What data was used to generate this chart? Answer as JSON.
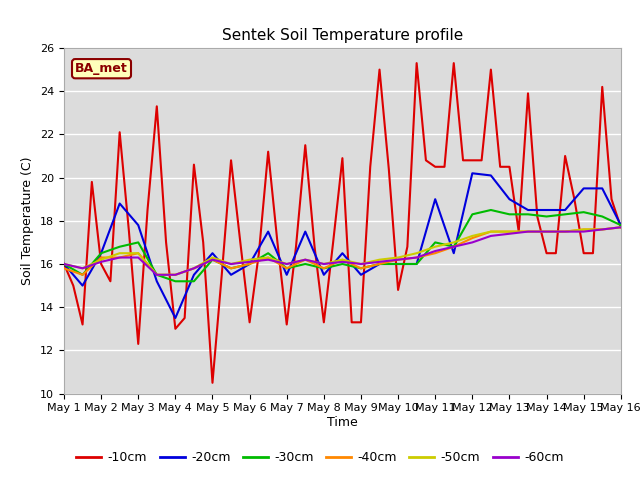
{
  "title": "Sentek Soil Temperature profile",
  "xlabel": "Time",
  "ylabel": "Soil Temperature (C)",
  "annotation": "BA_met",
  "ylim": [
    10,
    26
  ],
  "xlim": [
    0,
    15
  ],
  "yticks": [
    10,
    12,
    14,
    16,
    18,
    20,
    22,
    24,
    26
  ],
  "xtick_labels": [
    "May 1",
    "May 2",
    "May 3",
    "May 4",
    "May 5",
    "May 6",
    "May 7",
    "May 8",
    "May 9",
    "May 10",
    "May 11",
    "May 12",
    "May 13",
    "May 14",
    "May 15",
    "May 16"
  ],
  "bg_color": "#dcdcdc",
  "grid_color": "#ffffff",
  "title_fontsize": 11,
  "label_fontsize": 9,
  "tick_fontsize": 8,
  "legend_fontsize": 9,
  "series": {
    "-10cm": {
      "color": "#dd0000",
      "lw": 1.5,
      "x": [
        0,
        0.25,
        0.5,
        0.75,
        1.0,
        1.25,
        1.5,
        1.75,
        2.0,
        2.25,
        2.5,
        2.75,
        3.0,
        3.25,
        3.5,
        3.75,
        4.0,
        4.25,
        4.5,
        4.75,
        5.0,
        5.25,
        5.5,
        5.75,
        6.0,
        6.25,
        6.5,
        6.75,
        7.0,
        7.25,
        7.5,
        7.75,
        8.0,
        8.25,
        8.5,
        8.75,
        9.0,
        9.25,
        9.5,
        9.75,
        10.0,
        10.25,
        10.5,
        10.75,
        11.0,
        11.25,
        11.5,
        11.75,
        12.0,
        12.25,
        12.5,
        12.75,
        13.0,
        13.25,
        13.5,
        13.75,
        14.0,
        14.25,
        14.5,
        14.75,
        15.0
      ],
      "y": [
        16.0,
        15.0,
        13.2,
        19.8,
        16.0,
        15.2,
        22.1,
        17.5,
        12.3,
        18.5,
        23.3,
        17.0,
        13.0,
        13.5,
        20.6,
        17.0,
        10.5,
        15.5,
        20.8,
        17.0,
        13.3,
        16.5,
        21.2,
        17.0,
        13.2,
        16.8,
        21.5,
        16.8,
        13.3,
        17.0,
        20.9,
        13.3,
        13.3,
        20.5,
        25.0,
        20.4,
        14.8,
        16.8,
        25.3,
        20.8,
        20.5,
        20.5,
        25.3,
        20.8,
        20.8,
        20.8,
        25.0,
        20.5,
        20.5,
        17.5,
        23.9,
        18.2,
        16.5,
        16.5,
        21.0,
        19.0,
        16.5,
        16.5,
        24.2,
        19.0,
        17.7
      ]
    },
    "-20cm": {
      "color": "#0000dd",
      "lw": 1.5,
      "x": [
        0,
        0.5,
        1.0,
        1.5,
        2.0,
        2.5,
        3.0,
        3.5,
        4.0,
        4.5,
        5.0,
        5.5,
        6.0,
        6.5,
        7.0,
        7.5,
        8.0,
        8.5,
        9.0,
        9.5,
        10.0,
        10.5,
        11.0,
        11.5,
        12.0,
        12.5,
        13.0,
        13.5,
        14.0,
        14.5,
        15.0
      ],
      "y": [
        16.0,
        15.0,
        16.5,
        18.8,
        17.8,
        15.2,
        13.5,
        15.5,
        16.5,
        15.5,
        16.0,
        17.5,
        15.5,
        17.5,
        15.5,
        16.5,
        15.5,
        16.0,
        16.0,
        16.0,
        19.0,
        16.5,
        20.2,
        20.1,
        19.0,
        18.5,
        18.5,
        18.5,
        19.5,
        19.5,
        17.8
      ]
    },
    "-30cm": {
      "color": "#00bb00",
      "lw": 1.5,
      "x": [
        0,
        0.5,
        1.0,
        1.5,
        2.0,
        2.5,
        3.0,
        3.5,
        4.0,
        4.5,
        5.0,
        5.5,
        6.0,
        6.5,
        7.0,
        7.5,
        8.0,
        8.5,
        9.0,
        9.5,
        10.0,
        10.5,
        11.0,
        11.5,
        12.0,
        12.5,
        13.0,
        13.5,
        14.0,
        14.5,
        15.0
      ],
      "y": [
        16.0,
        15.5,
        16.5,
        16.8,
        17.0,
        15.5,
        15.2,
        15.2,
        16.2,
        15.8,
        16.0,
        16.5,
        15.8,
        16.0,
        15.8,
        16.0,
        15.8,
        16.0,
        16.0,
        16.0,
        17.0,
        16.8,
        18.3,
        18.5,
        18.3,
        18.3,
        18.2,
        18.3,
        18.4,
        18.2,
        17.8
      ]
    },
    "-40cm": {
      "color": "#ff8800",
      "lw": 1.5,
      "x": [
        0,
        0.5,
        1.0,
        1.5,
        2.0,
        2.5,
        3.0,
        3.5,
        4.0,
        4.5,
        5.0,
        5.5,
        6.0,
        6.5,
        7.0,
        7.5,
        8.0,
        8.5,
        9.0,
        9.5,
        10.0,
        10.5,
        11.0,
        11.5,
        12.0,
        12.5,
        13.0,
        13.5,
        14.0,
        14.5,
        15.0
      ],
      "y": [
        15.8,
        15.5,
        16.3,
        16.3,
        16.5,
        15.5,
        15.5,
        15.8,
        16.2,
        15.8,
        16.0,
        16.3,
        15.8,
        16.2,
        15.8,
        16.2,
        15.8,
        16.0,
        16.2,
        16.3,
        16.5,
        16.8,
        17.2,
        17.5,
        17.5,
        17.5,
        17.5,
        17.5,
        17.6,
        17.6,
        17.7
      ]
    },
    "-50cm": {
      "color": "#cccc00",
      "lw": 1.5,
      "x": [
        0,
        0.5,
        1.0,
        1.5,
        2.0,
        2.5,
        3.0,
        3.5,
        4.0,
        4.5,
        5.0,
        5.5,
        6.0,
        6.5,
        7.0,
        7.5,
        8.0,
        8.5,
        9.0,
        9.5,
        10.0,
        10.5,
        11.0,
        11.5,
        12.0,
        12.5,
        13.0,
        13.5,
        14.0,
        14.5,
        15.0
      ],
      "y": [
        16.0,
        15.8,
        16.2,
        16.5,
        16.5,
        15.5,
        15.5,
        15.8,
        16.3,
        16.0,
        16.2,
        16.3,
        16.0,
        16.2,
        16.0,
        16.2,
        16.0,
        16.2,
        16.3,
        16.5,
        16.8,
        17.0,
        17.3,
        17.5,
        17.5,
        17.5,
        17.5,
        17.5,
        17.6,
        17.6,
        17.7
      ]
    },
    "-60cm": {
      "color": "#9900cc",
      "lw": 1.5,
      "x": [
        0,
        0.5,
        1.0,
        1.5,
        2.0,
        2.5,
        3.0,
        3.5,
        4.0,
        4.5,
        5.0,
        5.5,
        6.0,
        6.5,
        7.0,
        7.5,
        8.0,
        8.5,
        9.0,
        9.5,
        10.0,
        10.5,
        11.0,
        11.5,
        12.0,
        12.5,
        13.0,
        13.5,
        14.0,
        14.5,
        15.0
      ],
      "y": [
        16.0,
        15.8,
        16.1,
        16.3,
        16.3,
        15.5,
        15.5,
        15.8,
        16.2,
        16.0,
        16.1,
        16.2,
        16.0,
        16.2,
        16.0,
        16.1,
        16.0,
        16.1,
        16.2,
        16.3,
        16.6,
        16.8,
        17.0,
        17.3,
        17.4,
        17.5,
        17.5,
        17.5,
        17.5,
        17.6,
        17.7
      ]
    }
  }
}
